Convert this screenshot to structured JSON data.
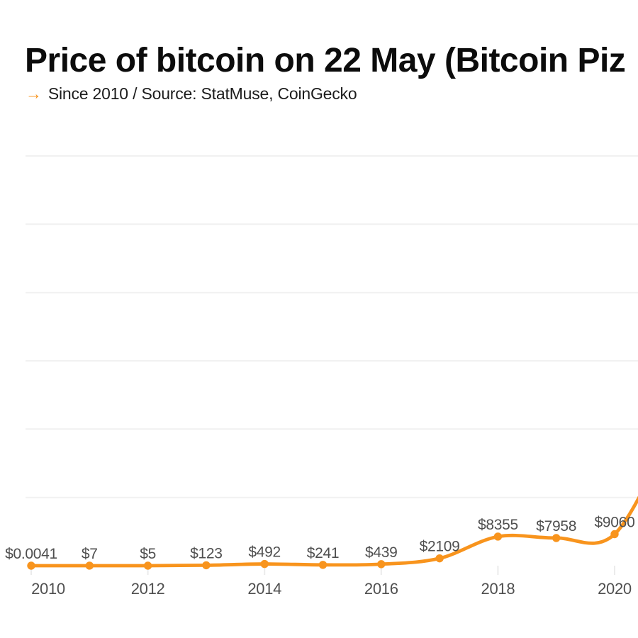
{
  "icons": {
    "arrow": "→"
  },
  "colors": {
    "background": "#FFFFFF",
    "line": "#F8941D",
    "label_text": "#4F4F4F",
    "title_text": "#0C0C0C",
    "subtitle_text": "#1C1C1C",
    "gridline": "#F1F1F1",
    "axis_tick": "#EBEBEB"
  },
  "chart_data": {
    "type": "line",
    "title": "Price of bitcoin on 22 May (Bitcoin Piz",
    "subtitle": "Since 2010 / Source: StatMuse, CoinGecko",
    "x": [
      2010,
      2011,
      2012,
      2013,
      2014,
      2015,
      2016,
      2017,
      2018,
      2019,
      2020
    ],
    "values": [
      0.0041,
      7,
      5,
      123,
      492,
      241,
      439,
      2109,
      8355,
      7958,
      9060
    ],
    "point_labels": [
      "$0.0041",
      "$7",
      "$5",
      "$123",
      "$492",
      "$241",
      "$439",
      "$2109",
      "$8355",
      "$7958",
      "$9060"
    ],
    "x_tick_labels": [
      "2010",
      "2012",
      "2014",
      "2016",
      "2018",
      "2020"
    ],
    "xlabel": "",
    "ylabel": "",
    "grid": true,
    "legend": false,
    "line_continues_offscreen_right": true
  }
}
